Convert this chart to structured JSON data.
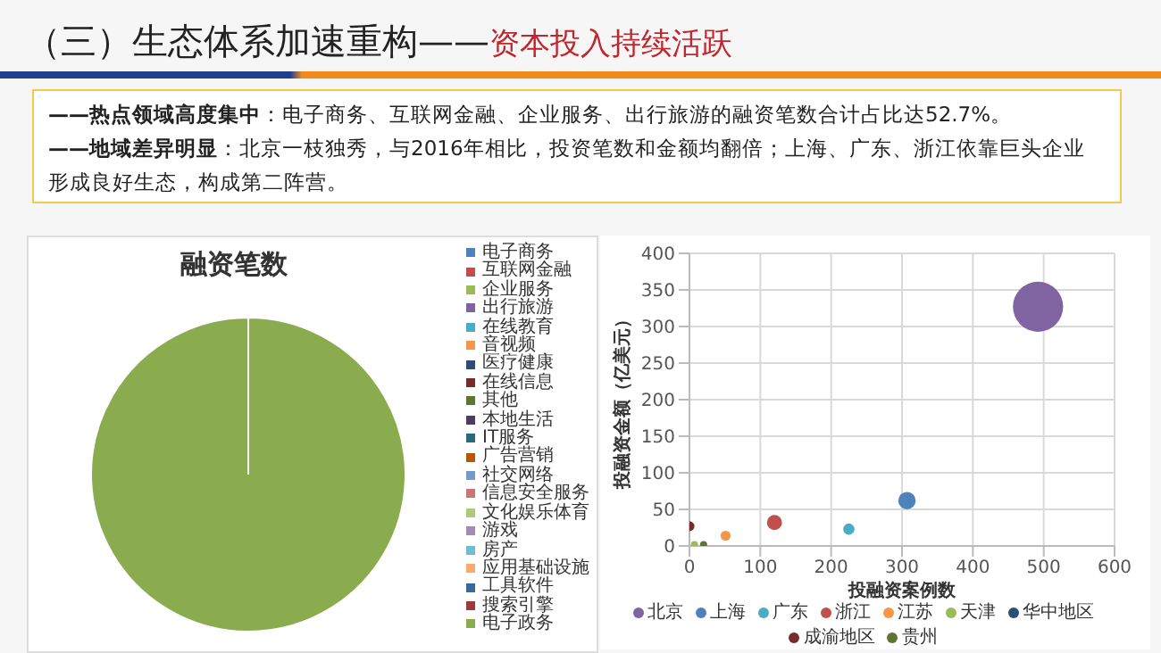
{
  "chart_data": [
    {
      "type": "other",
      "title": "（三）生态体系加速重构——",
      "subtitle": "资本投入持续活跃",
      "annotations": [
        "——热点领域高度集中：电子商务、互联网金融、企业服务、出行旅游的融资笔数合计占比达52.7%。",
        "——地域差异明显：北京一枝独秀，与2016年相比，投资笔数和金额均翻倍；上海、广东、浙江依靠巨头企业形成良好生态，构成第二阵营。"
      ]
    },
    {
      "type": "pie",
      "title": "融资笔数",
      "legend": "right",
      "categories": [
        "电子商务",
        "互联网金融",
        "企业服务",
        "出行旅游",
        "在线教育",
        "音视频",
        "医疗健康",
        "在线信息",
        "其他",
        "本地生活",
        "IT服务",
        "广告营销",
        "社交网络",
        "信息安全服务",
        "文化娱乐体育",
        "游戏",
        "房产",
        "应用基础设施",
        "工具软件",
        "搜索引擎",
        "电子政务"
      ],
      "values": [
        0,
        0,
        0,
        0,
        0,
        0,
        0,
        0,
        0,
        0,
        0,
        0,
        0,
        0,
        0,
        0,
        0,
        0,
        0,
        0,
        100
      ],
      "colors": [
        "#4f81bd",
        "#c0504d",
        "#9bbb59",
        "#8064a2",
        "#4bacc6",
        "#f79646",
        "#2c4d75",
        "#772c2a",
        "#5f7530",
        "#4d3b62",
        "#276a7c",
        "#b65708",
        "#729aca",
        "#cd7371",
        "#afc97a",
        "#a08cb8",
        "#6fbdd1",
        "#f9ab6b",
        "#3a679c",
        "#9e3a38",
        "#8aab4e"
      ]
    },
    {
      "type": "bubble",
      "xlabel": "投融资案例数",
      "ylabel": "投融资金额（亿美元）",
      "legend": "bottom",
      "grid": true,
      "xlim": [
        0,
        600
      ],
      "xticks": [
        0,
        100,
        200,
        300,
        400,
        500,
        600
      ],
      "ylim": [
        0,
        400
      ],
      "yticks": [
        0,
        50,
        100,
        150,
        200,
        250,
        300,
        350,
        400
      ],
      "series": [
        {
          "name": "北京",
          "color": "#8064a2",
          "x": [
            492
          ],
          "values": [
            327
          ],
          "sizes": [
            1
          ]
        },
        {
          "name": "上海",
          "color": "#4f81bd",
          "x": [
            307
          ],
          "values": [
            62
          ],
          "sizes": [
            0.12
          ]
        },
        {
          "name": "广东",
          "color": "#4bacc6",
          "x": [
            225
          ],
          "values": [
            23
          ],
          "sizes": [
            0.05
          ]
        },
        {
          "name": "浙江",
          "color": "#c0504d",
          "x": [
            120
          ],
          "values": [
            32
          ],
          "sizes": [
            0.09
          ]
        },
        {
          "name": "江苏",
          "color": "#f79646",
          "x": [
            51
          ],
          "values": [
            14
          ],
          "sizes": [
            0.04
          ]
        },
        {
          "name": "天津",
          "color": "#9bbb59",
          "x": [
            7
          ],
          "values": [
            2
          ],
          "sizes": [
            0.02
          ]
        },
        {
          "name": "华中地区",
          "color": "#2c4d75"
        },
        {
          "name": "成渝地区",
          "color": "#772c2a",
          "x": [
            0
          ],
          "values": [
            27
          ],
          "sizes": [
            0.04
          ]
        },
        {
          "name": "贵州",
          "color": "#5f7530",
          "x": [
            20
          ],
          "values": [
            2
          ],
          "sizes": [
            0.02
          ]
        }
      ]
    }
  ]
}
